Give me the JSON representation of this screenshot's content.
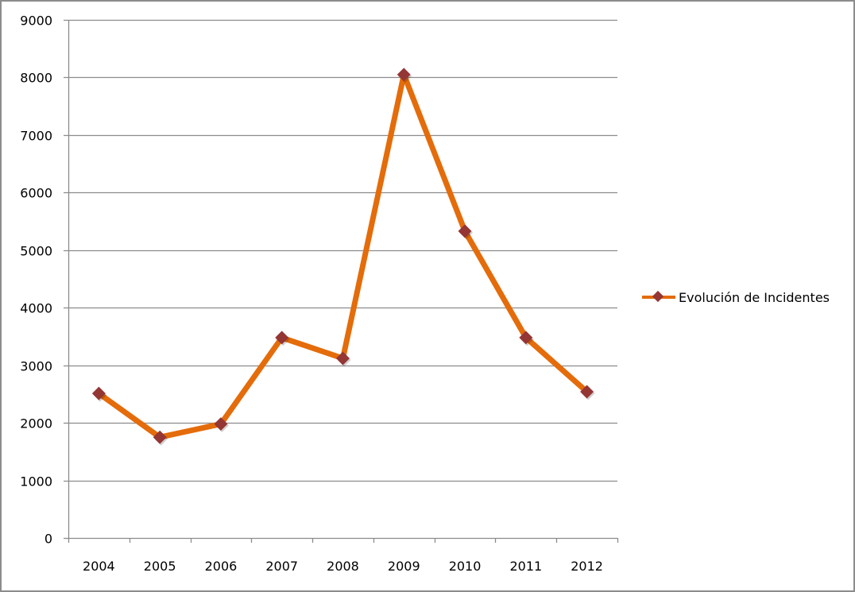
{
  "chart_data": {
    "type": "line",
    "title": "",
    "xlabel": "",
    "ylabel": "",
    "categories": [
      "2004",
      "2005",
      "2006",
      "2007",
      "2008",
      "2009",
      "2010",
      "2011",
      "2012"
    ],
    "series": [
      {
        "name": "Evolución de Incidentes",
        "values": [
          2510,
          1750,
          1980,
          3480,
          3120,
          8050,
          5330,
          3480,
          2540
        ],
        "line_color": "#e46c0a",
        "marker": "diamond",
        "marker_color": "#943634"
      }
    ],
    "ylim": [
      0,
      9000
    ],
    "yticks": [
      "0",
      "1000",
      "2000",
      "3000",
      "4000",
      "5000",
      "6000",
      "7000",
      "8000",
      "9000"
    ],
    "grid": true,
    "legend_position": "right"
  },
  "legend": {
    "label": "Evolución de Incidentes"
  }
}
